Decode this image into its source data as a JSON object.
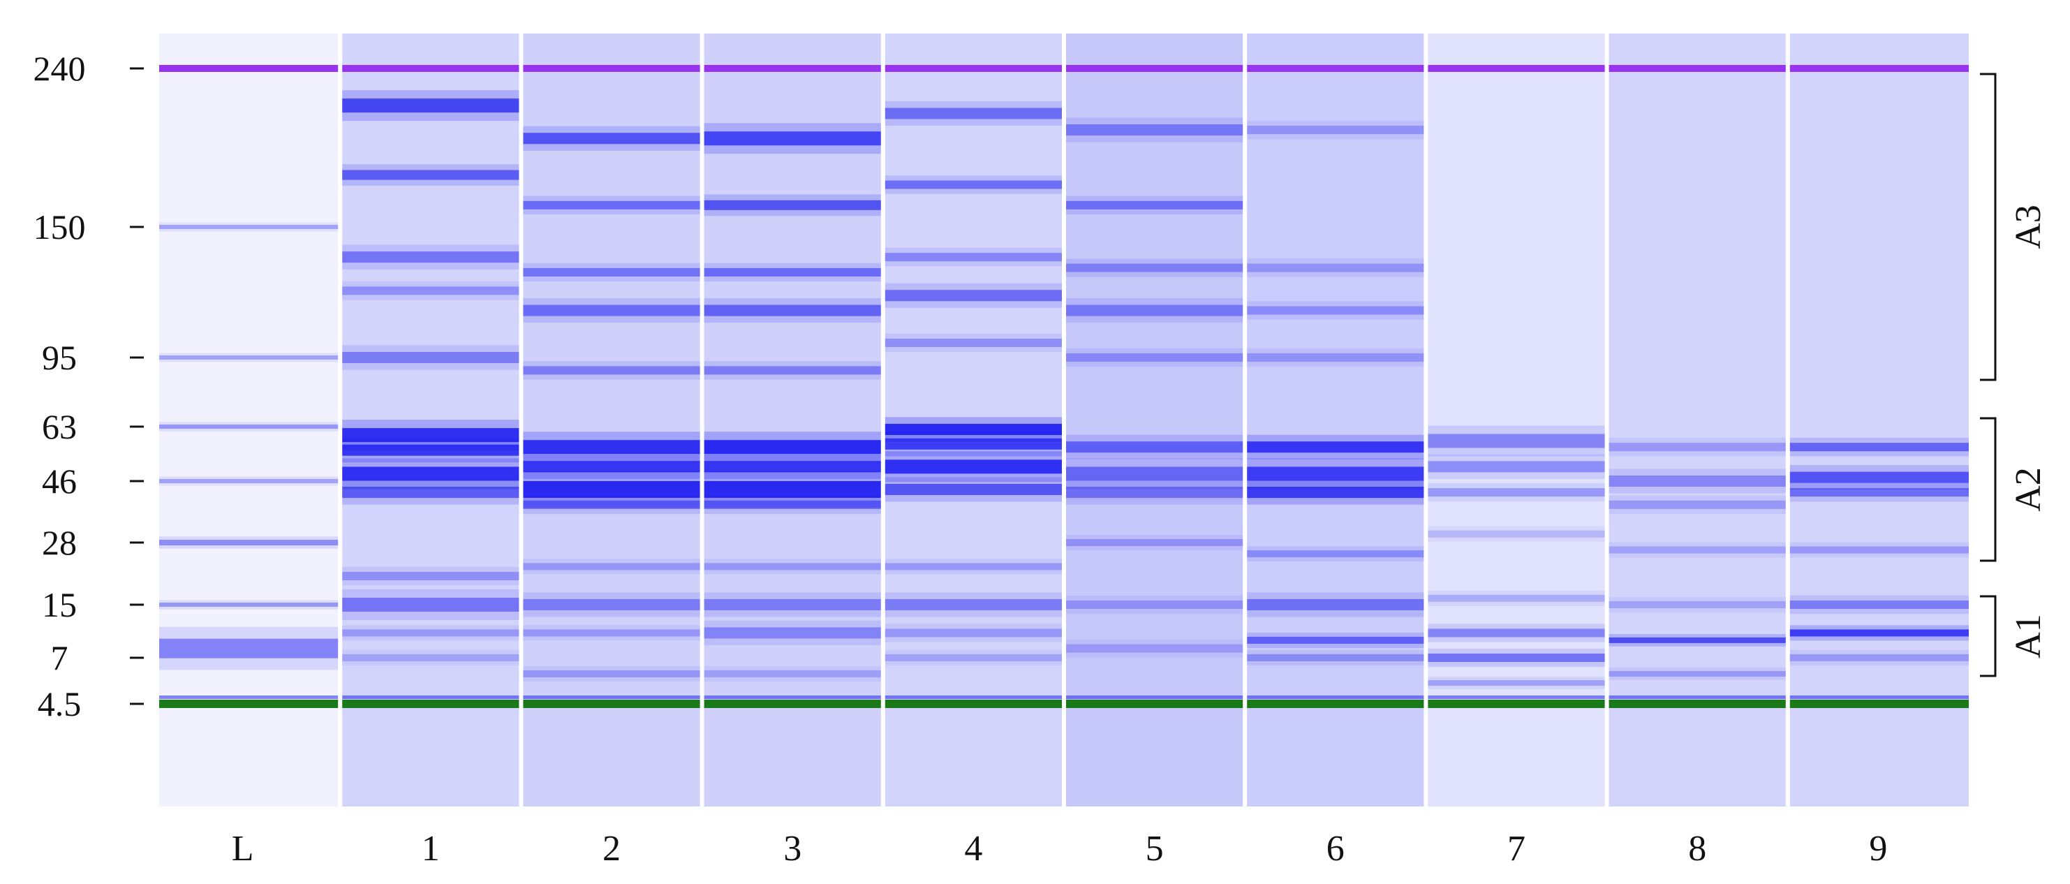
{
  "ladder_marks": [
    "240",
    "150",
    "95",
    "63",
    "46",
    "28",
    "15",
    "7",
    "4.5"
  ],
  "lane_labels": [
    "L",
    "1",
    "2",
    "3",
    "4",
    "5",
    "6",
    "7",
    "8",
    "9"
  ],
  "regions": [
    {
      "label": "A3",
      "from": "240",
      "to": "95"
    },
    {
      "label": "A2",
      "from": "63",
      "to": "28"
    },
    {
      "label": "A1",
      "from": "15",
      "to": "7"
    }
  ],
  "colors": {
    "background": "#e6e8fb",
    "band": "#1414f0",
    "upper_marker": "#9933ee",
    "lower_marker": "#1a7a1a",
    "lane_separator": "#ffffff"
  },
  "lanes": [
    {
      "label": "L",
      "bg": 0.02,
      "bands": [
        [
          150,
          0.35,
          3
        ],
        [
          95,
          0.35,
          3
        ],
        [
          63,
          0.4,
          3
        ],
        [
          46,
          0.35,
          3
        ],
        [
          28,
          0.45,
          4
        ],
        [
          15,
          0.4,
          3
        ],
        [
          8,
          0.5,
          14
        ]
      ]
    },
    {
      "label": "1",
      "bg": 0.12,
      "bands": [
        [
          215,
          0.8,
          10
        ],
        [
          175,
          0.65,
          7
        ],
        [
          135,
          0.5,
          8
        ],
        [
          120,
          0.35,
          6
        ],
        [
          95,
          0.45,
          8
        ],
        [
          60,
          0.95,
          10
        ],
        [
          55,
          0.9,
          8
        ],
        [
          48,
          0.95,
          10
        ],
        [
          42,
          0.65,
          8
        ],
        [
          20,
          0.35,
          6
        ],
        [
          15,
          0.5,
          10
        ],
        [
          10,
          0.3,
          5
        ],
        [
          7,
          0.25,
          5
        ]
      ]
    },
    {
      "label": "2",
      "bg": 0.14,
      "bands": [
        [
          195,
          0.7,
          8
        ],
        [
          160,
          0.55,
          6
        ],
        [
          128,
          0.5,
          6
        ],
        [
          112,
          0.55,
          8
        ],
        [
          88,
          0.45,
          6
        ],
        [
          56,
          0.95,
          10
        ],
        [
          50,
          0.9,
          8
        ],
        [
          43,
          1.0,
          12
        ],
        [
          38,
          0.55,
          6
        ],
        [
          22,
          0.3,
          5
        ],
        [
          15,
          0.45,
          8
        ],
        [
          10,
          0.3,
          5
        ],
        [
          6,
          0.3,
          5
        ]
      ]
    },
    {
      "label": "3",
      "bg": 0.14,
      "bands": [
        [
          195,
          0.8,
          10
        ],
        [
          160,
          0.7,
          7
        ],
        [
          128,
          0.55,
          6
        ],
        [
          112,
          0.6,
          8
        ],
        [
          88,
          0.45,
          6
        ],
        [
          56,
          1.0,
          10
        ],
        [
          50,
          0.9,
          8
        ],
        [
          43,
          1.0,
          12
        ],
        [
          38,
          0.55,
          6
        ],
        [
          22,
          0.3,
          5
        ],
        [
          15,
          0.45,
          8
        ],
        [
          10,
          0.4,
          8
        ],
        [
          6,
          0.25,
          5
        ]
      ]
    },
    {
      "label": "4",
      "bg": 0.12,
      "bands": [
        [
          210,
          0.55,
          8
        ],
        [
          170,
          0.55,
          6
        ],
        [
          135,
          0.4,
          6
        ],
        [
          118,
          0.55,
          8
        ],
        [
          100,
          0.35,
          6
        ],
        [
          62,
          1.0,
          8
        ],
        [
          57,
          0.85,
          8
        ],
        [
          50,
          0.95,
          10
        ],
        [
          43,
          0.7,
          8
        ],
        [
          22,
          0.3,
          5
        ],
        [
          15,
          0.45,
          8
        ],
        [
          10,
          0.3,
          6
        ],
        [
          7,
          0.25,
          5
        ]
      ]
    },
    {
      "label": "5",
      "bg": 0.18,
      "bands": [
        [
          200,
          0.45,
          8
        ],
        [
          160,
          0.5,
          6
        ],
        [
          130,
          0.4,
          6
        ],
        [
          112,
          0.45,
          8
        ],
        [
          95,
          0.35,
          6
        ],
        [
          56,
          0.6,
          8
        ],
        [
          48,
          0.55,
          10
        ],
        [
          42,
          0.5,
          8
        ],
        [
          28,
          0.3,
          5
        ],
        [
          15,
          0.3,
          6
        ],
        [
          8,
          0.25,
          6
        ]
      ]
    },
    {
      "label": "6",
      "bg": 0.16,
      "bands": [
        [
          200,
          0.3,
          6
        ],
        [
          130,
          0.3,
          6
        ],
        [
          112,
          0.35,
          6
        ],
        [
          95,
          0.3,
          6
        ],
        [
          56,
          0.9,
          8
        ],
        [
          48,
          0.85,
          10
        ],
        [
          42,
          0.85,
          8
        ],
        [
          25,
          0.35,
          5
        ],
        [
          15,
          0.5,
          8
        ],
        [
          9,
          0.6,
          5
        ],
        [
          7,
          0.35,
          5
        ]
      ]
    },
    {
      "label": "7",
      "bg": 0.06,
      "bands": [
        [
          58,
          0.45,
          10
        ],
        [
          50,
          0.4,
          8
        ],
        [
          42,
          0.35,
          6
        ],
        [
          30,
          0.2,
          5
        ],
        [
          16,
          0.25,
          5
        ],
        [
          10,
          0.45,
          6
        ],
        [
          7,
          0.55,
          6
        ],
        [
          5.5,
          0.3,
          4
        ]
      ]
    },
    {
      "label": "8",
      "bg": 0.12,
      "bands": [
        [
          56,
          0.3,
          6
        ],
        [
          46,
          0.4,
          8
        ],
        [
          38,
          0.3,
          6
        ],
        [
          26,
          0.25,
          5
        ],
        [
          15,
          0.25,
          5
        ],
        [
          9,
          0.75,
          4
        ],
        [
          6,
          0.3,
          4
        ]
      ]
    },
    {
      "label": "9",
      "bg": 0.12,
      "bands": [
        [
          56,
          0.6,
          6
        ],
        [
          47,
          0.7,
          8
        ],
        [
          42,
          0.55,
          6
        ],
        [
          26,
          0.3,
          5
        ],
        [
          15,
          0.45,
          6
        ],
        [
          10,
          0.85,
          5
        ],
        [
          7,
          0.3,
          5
        ]
      ]
    }
  ]
}
